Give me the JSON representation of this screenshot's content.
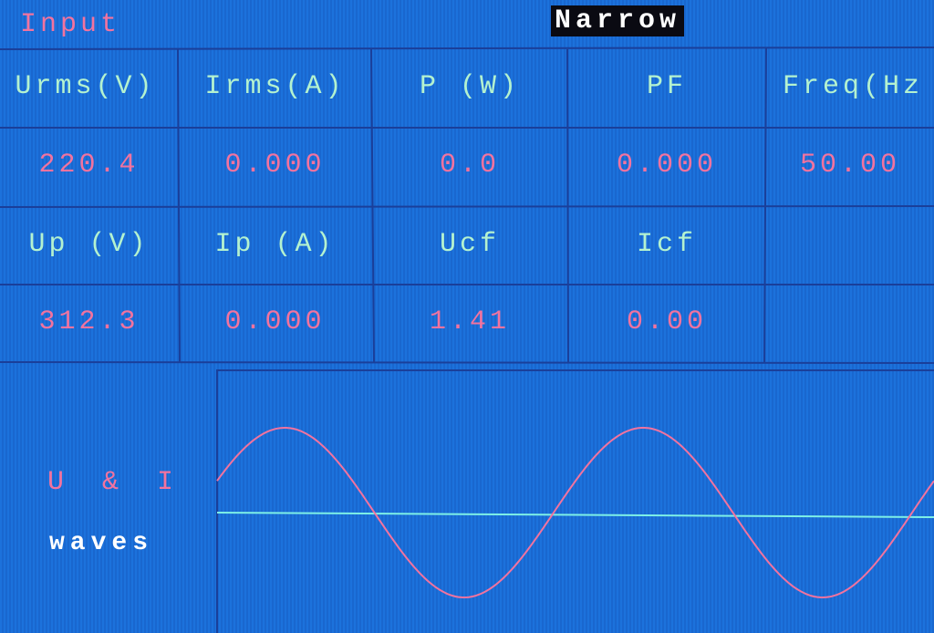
{
  "header": {
    "title": "Input",
    "mode": "Narrow"
  },
  "table": {
    "rows": [
      [
        "Urms(V)",
        "Irms(A)",
        "P (W)",
        "PF",
        "Freq(Hz"
      ],
      [
        "220.4",
        "0.000",
        "0.0",
        "0.000",
        "50.00"
      ],
      [
        "Up (V)",
        "Ip (A)",
        "Ucf",
        "Icf"
      ],
      [
        "312.3",
        "0.000",
        "1.41",
        "0.00"
      ]
    ]
  },
  "waves": {
    "label_1": "U & I",
    "label_2": "waves"
  }
}
